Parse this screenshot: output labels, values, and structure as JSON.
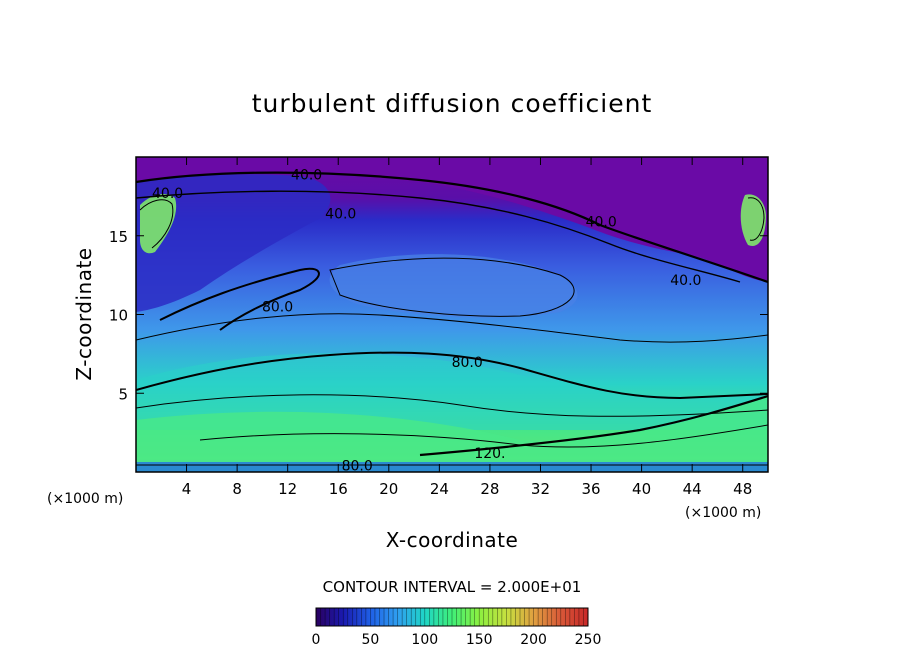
{
  "chart_data": {
    "type": "heatmap",
    "title": "turbulent diffusion coefficient",
    "xlabel": "X-coordinate",
    "ylabel": "Z-coordinate",
    "x_unit": "(×1000 m)",
    "x_unit_right": "(×1000 m)",
    "xlim": [
      0,
      50
    ],
    "ylim": [
      0,
      20
    ],
    "x_ticks": [
      4,
      8,
      12,
      16,
      20,
      24,
      28,
      32,
      36,
      40,
      44,
      48
    ],
    "y_ticks": [
      5,
      10,
      15
    ],
    "contour_interval_text": "CONTOUR INTERVAL = 2.000E+01",
    "contour_interval": 20,
    "colorbar": {
      "min": 0,
      "max": 250,
      "ticks": [
        0,
        50,
        100,
        150,
        200,
        250
      ],
      "colors": [
        "#2a0060",
        "#1a1ab0",
        "#1f5fe6",
        "#2f9ff0",
        "#1fd6c6",
        "#40ef78",
        "#8cf040",
        "#c6e040",
        "#e0a040",
        "#d85838",
        "#c82828"
      ]
    },
    "field_colors": {
      "top_band": "#6a0aa6",
      "upper_blue": "#3a4ad8",
      "mid_blue": "#3f8eea",
      "lower_cyan": "#2ad2c8",
      "bottom_green": "#45e58a",
      "surface_strip": "#2a8ad0"
    },
    "contour_labels": [
      {
        "text": "40.0",
        "x": 2.5,
        "y": 17.7
      },
      {
        "text": "40.0",
        "x": 13.5,
        "y": 18.9
      },
      {
        "text": "40.0",
        "x": 16.2,
        "y": 16.4
      },
      {
        "text": "40.0",
        "x": 36.8,
        "y": 15.9
      },
      {
        "text": "40.0",
        "x": 43.5,
        "y": 12.2
      },
      {
        "text": "80.0",
        "x": 11.2,
        "y": 10.5
      },
      {
        "text": "80.0",
        "x": 26.2,
        "y": 7.0
      },
      {
        "text": "80.0",
        "x": 17.5,
        "y": 0.4
      },
      {
        "text": "120.",
        "x": 28.0,
        "y": 1.2
      }
    ]
  }
}
